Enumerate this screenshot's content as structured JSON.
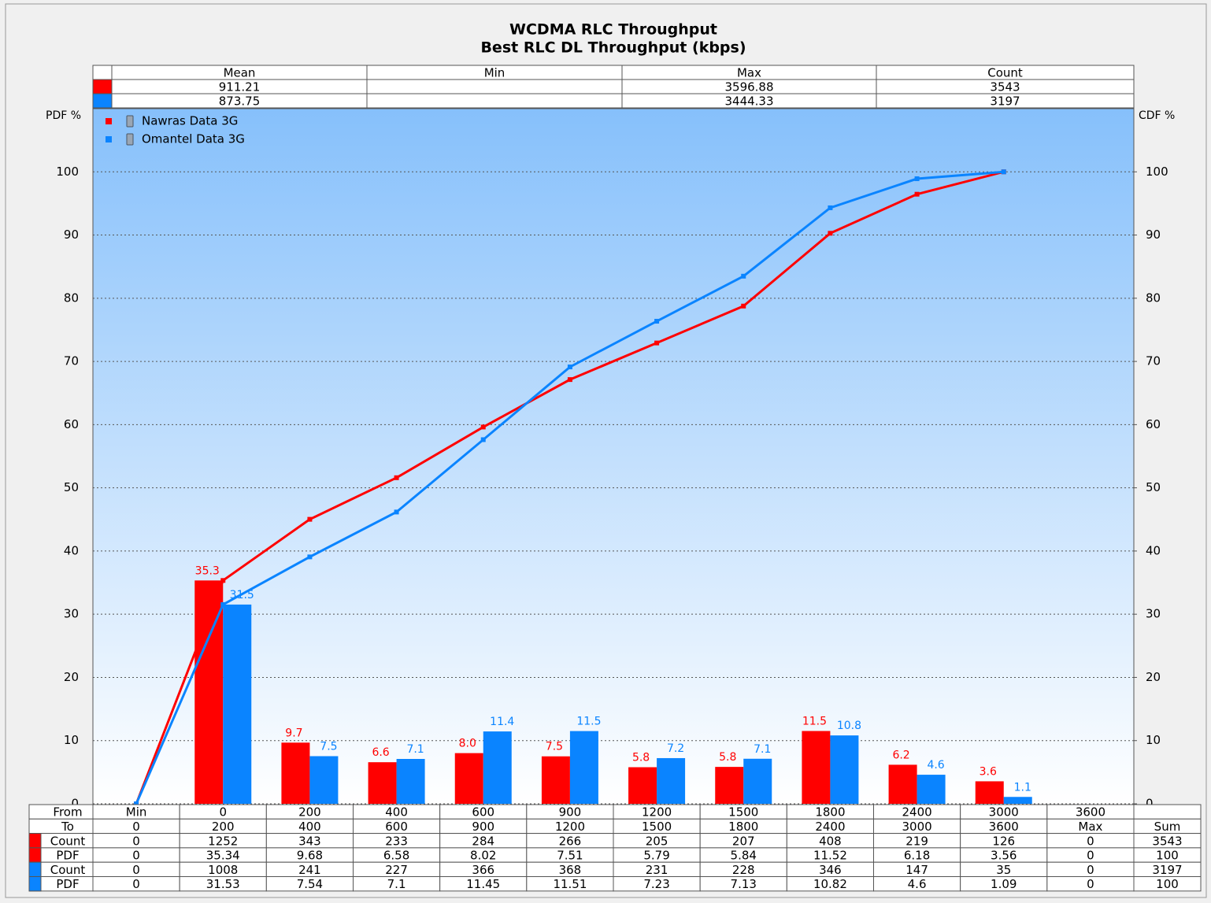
{
  "chart_data": {
    "type": "bar",
    "title": "WCDMA RLC Throughput",
    "subtitle": "Best RLC DL Throughput (kbps)",
    "y_label": "PDF %",
    "y2_label": "CDF %",
    "ylim": [
      0,
      110
    ],
    "yticks": [
      0,
      10,
      20,
      30,
      40,
      50,
      60,
      70,
      80,
      90,
      100
    ],
    "y2lim": [
      0,
      110
    ],
    "y2ticks": [
      0,
      10,
      20,
      30,
      40,
      50,
      60,
      70,
      80,
      90,
      100
    ],
    "grid": true,
    "legend": "upper left",
    "series": [
      {
        "name": "Nawras Data 3G",
        "color": "#ff0000",
        "values": [
          0,
          35.34,
          9.68,
          6.58,
          8.02,
          7.51,
          5.79,
          5.84,
          11.52,
          6.18,
          3.56,
          0
        ],
        "value_labels": [
          null,
          "35.3",
          "9.7",
          "6.6",
          "8.0",
          "7.5",
          "5.8",
          "5.8",
          "11.5",
          "6.2",
          "3.6",
          null
        ],
        "cdf_values": [
          0,
          35.34,
          45.02,
          51.6,
          59.62,
          67.13,
          72.92,
          78.76,
          90.28,
          96.46,
          100,
          null
        ]
      },
      {
        "name": "Omantel Data 3G",
        "color": "#0a84ff",
        "values": [
          0,
          31.53,
          7.54,
          7.1,
          11.45,
          11.51,
          7.23,
          7.13,
          10.82,
          4.6,
          1.09,
          0
        ],
        "value_labels": [
          null,
          "31.5",
          "7.5",
          "7.1",
          "11.4",
          "11.5",
          "7.2",
          "7.1",
          "10.8",
          "4.6",
          "1.1",
          null
        ],
        "cdf_values": [
          0,
          31.53,
          39.07,
          46.17,
          57.62,
          69.13,
          76.36,
          83.49,
          94.31,
          98.91,
          100,
          null
        ]
      }
    ]
  },
  "summary_table": {
    "columns": [
      "Mean",
      "Min",
      "Max",
      "Count"
    ],
    "rows": [
      {
        "color": "#ff0000",
        "cells": [
          911.21,
          null,
          3596.88,
          3543
        ]
      },
      {
        "color": "#0a84ff",
        "cells": [
          873.75,
          null,
          3444.33,
          3197
        ]
      }
    ]
  },
  "bottom_table": {
    "rows": [
      {
        "label": "From",
        "color": null,
        "cells": [
          "Min",
          0,
          200,
          400,
          600,
          900,
          1200,
          1500,
          1800,
          2400,
          3000,
          3600,
          null
        ]
      },
      {
        "label": "To",
        "color": null,
        "cells": [
          0,
          200,
          400,
          600,
          900,
          1200,
          1500,
          1800,
          2400,
          3000,
          3600,
          "Max",
          "Sum"
        ]
      },
      {
        "label": "Count",
        "color": "#ff0000",
        "cells": [
          0,
          1252,
          343,
          233,
          284,
          266,
          205,
          207,
          408,
          219,
          126,
          0,
          3543
        ]
      },
      {
        "label": "PDF",
        "color": "#ff0000",
        "cells": [
          0,
          35.34,
          9.68,
          6.58,
          8.02,
          7.51,
          5.79,
          5.84,
          11.52,
          6.18,
          3.56,
          0,
          100
        ]
      },
      {
        "label": "Count",
        "color": "#0a84ff",
        "cells": [
          0,
          1008,
          241,
          227,
          366,
          368,
          231,
          228,
          346,
          147,
          35,
          0,
          3197
        ]
      },
      {
        "label": "PDF",
        "color": "#0a84ff",
        "cells": [
          0,
          31.53,
          7.54,
          7.1,
          11.45,
          11.51,
          7.23,
          7.13,
          10.82,
          4.6,
          1.09,
          0,
          100
        ]
      }
    ]
  }
}
